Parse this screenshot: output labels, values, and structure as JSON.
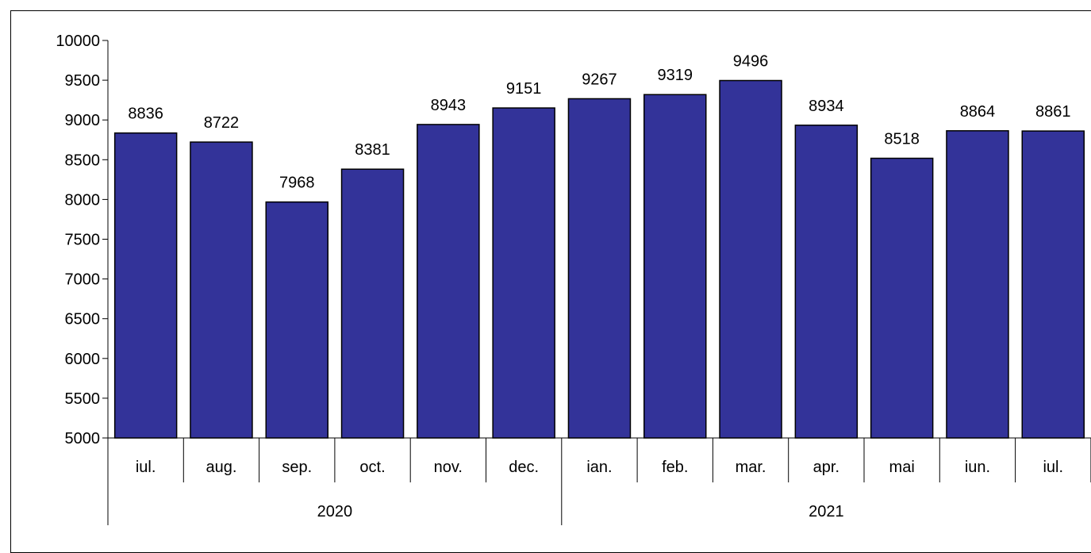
{
  "chart_data": {
    "type": "bar",
    "title": "",
    "xlabel": "",
    "ylabel": "",
    "ylim": [
      5000,
      10000
    ],
    "ytick_step": 500,
    "grid": false,
    "legend": "none",
    "bar_color": "#333399",
    "bar_border_color": "#000000",
    "categories": [
      "iul.",
      "aug.",
      "sep.",
      "oct.",
      "nov.",
      "dec.",
      "ian.",
      "feb.",
      "mar.",
      "apr.",
      "mai",
      "iun.",
      "iul."
    ],
    "values": [
      8836,
      8722,
      7968,
      8381,
      8943,
      9151,
      9267,
      9319,
      9496,
      8934,
      8518,
      8864,
      8861
    ],
    "year_groups": [
      {
        "label": "2020",
        "count": 6
      },
      {
        "label": "2021",
        "count": 7
      }
    ]
  }
}
